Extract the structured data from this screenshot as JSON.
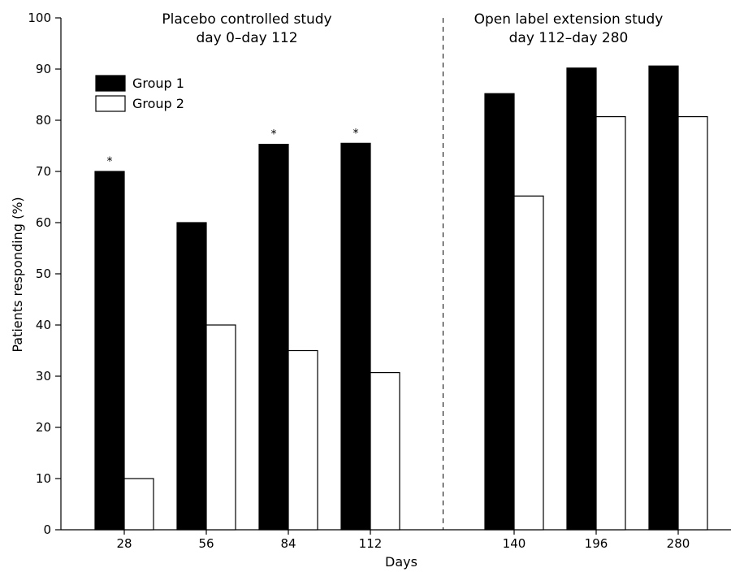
{
  "chart_data": {
    "type": "bar",
    "xlabel": "Days",
    "ylabel": "Patients responding (%)",
    "ylim": [
      0,
      100
    ],
    "yticks": [
      0,
      10,
      20,
      30,
      40,
      50,
      60,
      70,
      80,
      90,
      100
    ],
    "categories": [
      "28",
      "56",
      "84",
      "112",
      "140",
      "196",
      "280"
    ],
    "series": [
      {
        "name": "Group 1",
        "fill": "#000000",
        "values": [
          70,
          60,
          75.3,
          75.5,
          85.2,
          90.2,
          90.6
        ]
      },
      {
        "name": "Group 2",
        "fill": "#ffffff",
        "values": [
          10,
          40,
          35,
          30.7,
          65.2,
          80.7,
          80.7
        ]
      }
    ],
    "significance_marker": "*",
    "significant_categories": [
      "28",
      "84",
      "112"
    ],
    "sections": [
      {
        "line1": "Placebo controlled study",
        "line2": "day 0–day 112"
      },
      {
        "line1": "Open label extension study",
        "line2": "day 112–day 280"
      }
    ],
    "divider_after_category": "112",
    "legend_position": "top-left",
    "grid": false
  }
}
